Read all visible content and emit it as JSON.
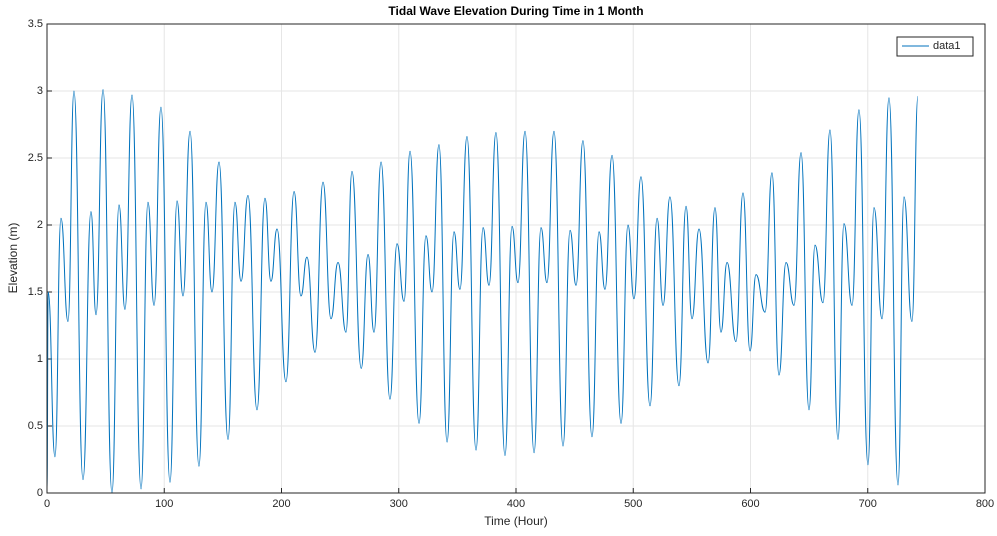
{
  "chart_data": {
    "type": "line",
    "title": "Tidal Wave Elevation During Time in 1 Month",
    "x_label": "Time (Hour)",
    "y_label": "Elevation (m)",
    "x": [
      0,
      1,
      6.8,
      11.9,
      17.9,
      23.0,
      30.7,
      37.5,
      41.8,
      47.8,
      55.4,
      61.4,
      66.5,
      72.5,
      80.2,
      86.1,
      91.3,
      97.2,
      104.9,
      110.9,
      116.0,
      122.0,
      129.6,
      135.6,
      140.7,
      146.7,
      154.4,
      160.3,
      165.5,
      171.4,
      179.1,
      185.9,
      191.0,
      196.2,
      203.8,
      210.7,
      216.6,
      221.7,
      228.6,
      235.4,
      242.2,
      248.2,
      255.0,
      260.1,
      268.0,
      273.8,
      278.9,
      284.9,
      292.5,
      298.5,
      304.5,
      309.6,
      317.3,
      323.2,
      328.4,
      334.3,
      341.2,
      347.1,
      352.2,
      358.2,
      365.9,
      371.9,
      377.0,
      382.9,
      390.6,
      396.6,
      401.7,
      407.7,
      415.4,
      421.3,
      426.4,
      432.4,
      440.1,
      446.1,
      451.2,
      457.1,
      464.8,
      470.8,
      475.9,
      481.9,
      489.6,
      495.5,
      500.6,
      506.6,
      514.3,
      520.3,
      525.4,
      531.3,
      539.0,
      545.0,
      550.1,
      556.1,
      563.8,
      569.7,
      574.8,
      580.0,
      587.6,
      593.6,
      599.6,
      604.7,
      612.4,
      618.3,
      624.3,
      630.3,
      637.1,
      643.1,
      649.9,
      655.0,
      661.8,
      667.8,
      674.6,
      679.7,
      686.6,
      692.5,
      700.2,
      705.3,
      712.2,
      718.1,
      725.8,
      730.9,
      737.7,
      742.8
    ],
    "series": [
      {
        "name": "data1",
        "color": "#0072bd",
        "values": [
          0,
          1.5,
          0.27,
          2.05,
          1.28,
          3.0,
          0.1,
          2.1,
          1.33,
          3.01,
          0,
          2.15,
          1.37,
          2.97,
          0.03,
          2.17,
          1.4,
          2.88,
          0.08,
          2.18,
          1.47,
          2.7,
          0.2,
          2.17,
          1.5,
          2.47,
          0.4,
          2.17,
          1.58,
          2.22,
          0.62,
          2.2,
          1.58,
          1.97,
          0.83,
          2.25,
          1.47,
          1.76,
          1.05,
          2.32,
          1.3,
          1.72,
          1.2,
          2.4,
          0.93,
          1.78,
          1.2,
          2.47,
          0.7,
          1.86,
          1.43,
          2.55,
          0.52,
          1.92,
          1.5,
          2.6,
          0.38,
          1.95,
          1.52,
          2.66,
          0.32,
          1.98,
          1.55,
          2.69,
          0.28,
          1.99,
          1.57,
          2.7,
          0.3,
          1.98,
          1.57,
          2.7,
          0.35,
          1.96,
          1.55,
          2.63,
          0.42,
          1.95,
          1.52,
          2.52,
          0.52,
          2.0,
          1.45,
          2.36,
          0.65,
          2.05,
          1.4,
          2.21,
          0.8,
          2.14,
          1.3,
          1.97,
          0.97,
          2.13,
          1.2,
          1.72,
          1.13,
          2.24,
          1.06,
          1.63,
          1.35,
          2.39,
          0.88,
          1.72,
          1.4,
          2.54,
          0.62,
          1.85,
          1.42,
          2.71,
          0.4,
          2.01,
          1.4,
          2.86,
          0.21,
          2.13,
          1.3,
          2.95,
          0.06,
          2.21,
          1.28,
          2.96
        ]
      }
    ],
    "xlim": [
      0,
      800
    ],
    "xticks": [
      0,
      100,
      200,
      300,
      400,
      500,
      600,
      700,
      800
    ],
    "ylim": [
      0,
      3.5
    ],
    "yticks": [
      0,
      0.5,
      1,
      1.5,
      2,
      2.5,
      3,
      3.5
    ],
    "grid": true,
    "legend": "northeast"
  }
}
